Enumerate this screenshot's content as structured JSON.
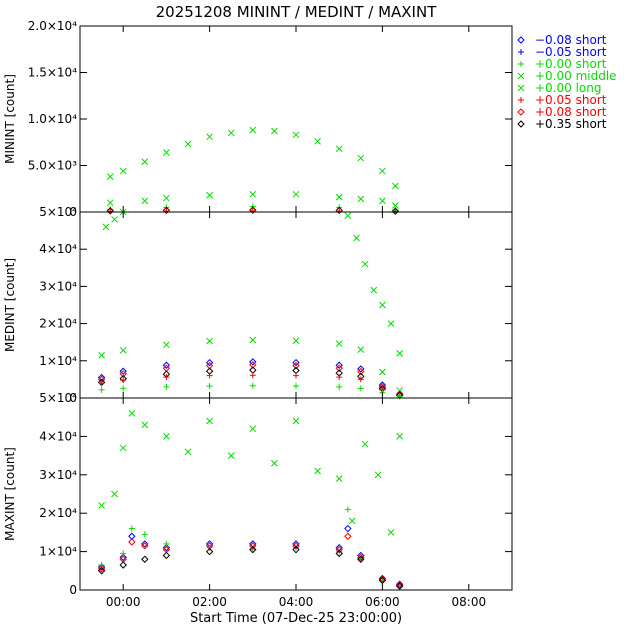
{
  "chart_data": {
    "type": "scatter",
    "title": "20251208 MININT / MEDINT / MAXINT",
    "xlabel": "Start Time (07-Dec-25 23:00:00)",
    "x_unit": "hours after 00:00 08-Dec-25",
    "xlim": [
      -1.0,
      9.0
    ],
    "x_ticks": [
      0,
      2,
      4,
      6,
      8
    ],
    "x_tick_labels": [
      "00:00",
      "02:00",
      "04:00",
      "06:00",
      "08:00"
    ],
    "legend_position": "right",
    "legend": [
      {
        "label": "−0.08 short",
        "color": "#0000ff",
        "marker": "diamond"
      },
      {
        "label": "−0.05 short",
        "color": "#0000ff",
        "marker": "plus"
      },
      {
        "label": "+0.00 short",
        "color": "#00dd00",
        "marker": "plus"
      },
      {
        "label": "+0.00 middle",
        "color": "#00dd00",
        "marker": "cross"
      },
      {
        "label": "+0.00 long",
        "color": "#00dd00",
        "marker": "cross"
      },
      {
        "label": "+0.05 short",
        "color": "#ff0000",
        "marker": "plus"
      },
      {
        "label": "+0.08 short",
        "color": "#ff0000",
        "marker": "diamond"
      },
      {
        "label": "+0.35 short",
        "color": "#000000",
        "marker": "diamond"
      }
    ],
    "panels": [
      {
        "ylabel": "MININT [count]",
        "ylim": [
          0,
          20000
        ],
        "y_ticks": [
          0,
          5000,
          10000,
          15000,
          20000
        ],
        "y_tick_labels": [
          "0",
          "5.0×10³",
          "1.0×10⁴",
          "1.5×10⁴",
          "2.0×10⁴"
        ],
        "series": [
          {
            "name": "+0.00 middle",
            "color": "#00dd00",
            "marker": "cross",
            "x": [
              -0.3,
              0.0,
              0.5,
              1.0,
              1.5,
              2.0,
              2.5,
              3.0,
              3.5,
              4.0,
              4.5,
              5.0,
              5.5,
              6.0,
              6.3
            ],
            "y": [
              3800,
              4400,
              5400,
              6400,
              7300,
              8100,
              8500,
              8800,
              8700,
              8300,
              7600,
              6800,
              5800,
              4400,
              2800
            ]
          },
          {
            "name": "+0.00 long",
            "color": "#00dd00",
            "marker": "cross",
            "x": [
              -0.3,
              0.5,
              1.0,
              2.0,
              3.0,
              4.0,
              5.0,
              5.5,
              6.0,
              6.3
            ],
            "y": [
              1000,
              1200,
              1500,
              1800,
              1900,
              1900,
              1600,
              1400,
              1200,
              700
            ]
          },
          {
            "name": "+0.00 short",
            "color": "#00dd00",
            "marker": "plus",
            "x": [
              -0.3,
              1.0,
              3.0,
              5.0,
              6.3
            ],
            "y": [
              300,
              500,
              600,
              500,
              200
            ]
          },
          {
            "name": "+0.35 short",
            "color": "#000000",
            "marker": "diamond",
            "x": [
              -0.3,
              1.0,
              3.0,
              5.0,
              6.3
            ],
            "y": [
              120,
              180,
              200,
              180,
              80
            ]
          },
          {
            "name": "+0.05 short",
            "color": "#ff0000",
            "marker": "plus",
            "x": [
              -0.3,
              1.0,
              3.0,
              5.0,
              6.3
            ],
            "y": [
              80,
              110,
              130,
              110,
              50
            ]
          }
        ]
      },
      {
        "ylabel": "MEDINT [count]",
        "ylim": [
          0,
          50000
        ],
        "y_ticks": [
          0,
          10000,
          20000,
          30000,
          40000,
          50000
        ],
        "y_tick_labels": [
          "0",
          "1×10⁴",
          "2×10⁴",
          "3×10⁴",
          "4×10⁴",
          "5×10⁴"
        ],
        "series": [
          {
            "name": "+0.00 middle",
            "color": "#00dd00",
            "marker": "cross",
            "x": [
              -0.4,
              -0.2,
              0.0,
              5.2,
              5.4,
              5.6,
              5.8,
              6.0,
              6.2,
              6.4
            ],
            "y": [
              46000,
              48000,
              50000,
              49000,
              43000,
              36000,
              29000,
              25000,
              20000,
              12000
            ]
          },
          {
            "name": "+0.00 long",
            "color": "#00dd00",
            "marker": "cross",
            "x": [
              -0.5,
              0.0,
              1.0,
              2.0,
              3.0,
              4.0,
              5.0,
              5.5,
              6.0,
              6.4
            ],
            "y": [
              11500,
              12800,
              14300,
              15300,
              15600,
              15400,
              14600,
              13000,
              7000,
              2000
            ]
          },
          {
            "name": "−0.08 short",
            "color": "#0000ff",
            "marker": "diamond",
            "x": [
              -0.5,
              0.0,
              1.0,
              2.0,
              3.0,
              4.0,
              5.0,
              5.5,
              6.0,
              6.4
            ],
            "y": [
              5500,
              7200,
              8800,
              9500,
              9700,
              9500,
              8800,
              7800,
              3500,
              1000
            ]
          },
          {
            "name": "+0.08 short",
            "color": "#ff0000",
            "marker": "diamond",
            "x": [
              -0.5,
              0.0,
              1.0,
              2.0,
              3.0,
              4.0,
              5.0,
              5.5,
              6.0,
              6.4
            ],
            "y": [
              5000,
              6500,
              8000,
              8700,
              8900,
              8700,
              8000,
              7100,
              3000,
              900
            ]
          },
          {
            "name": "+0.35 short",
            "color": "#000000",
            "marker": "diamond",
            "x": [
              -0.5,
              0.0,
              1.0,
              2.0,
              3.0,
              4.0,
              5.0,
              5.5,
              6.0,
              6.4
            ],
            "y": [
              4200,
              5200,
              6400,
              7200,
              7500,
              7400,
              6700,
              5800,
              2500,
              700
            ]
          },
          {
            "name": "+0.05 short",
            "color": "#ff0000",
            "marker": "plus",
            "x": [
              -0.5,
              0.0,
              1.0,
              2.0,
              3.0,
              4.0,
              5.0,
              5.5,
              6.0,
              6.4
            ],
            "y": [
              4000,
              4800,
              5600,
              6000,
              6100,
              6000,
              5600,
              5000,
              2200,
              600
            ]
          },
          {
            "name": "+0.00 short",
            "color": "#00dd00",
            "marker": "plus",
            "x": [
              -0.5,
              0.0,
              1.0,
              2.0,
              3.0,
              4.0,
              5.0,
              5.5,
              6.0,
              6.4
            ],
            "y": [
              2200,
              2600,
              3000,
              3200,
              3300,
              3200,
              3000,
              2600,
              1400,
              400
            ]
          }
        ]
      },
      {
        "ylabel": "MAXINT [count]",
        "ylim": [
          0,
          50000
        ],
        "y_ticks": [
          0,
          10000,
          20000,
          30000,
          40000,
          50000
        ],
        "y_tick_labels": [
          "0",
          "1×10⁴",
          "2×10⁴",
          "3×10⁴",
          "4×10⁴",
          "5×10⁴"
        ],
        "series": [
          {
            "name": "+0.00 middle",
            "color": "#00dd00",
            "marker": "cross",
            "x": [
              -0.5,
              -0.2,
              0.0,
              0.2,
              0.5,
              1.0,
              1.5,
              2.0,
              2.5,
              3.0,
              3.5,
              4.0,
              4.5,
              5.0,
              5.3,
              5.6,
              5.9,
              6.2,
              6.4
            ],
            "y": [
              22000,
              25000,
              37000,
              46000,
              43000,
              40000,
              36000,
              44000,
              35000,
              42000,
              33000,
              44000,
              31000,
              29000,
              18000,
              38000,
              30000,
              15000,
              40000
            ]
          },
          {
            "name": "−0.08 short",
            "color": "#0000ff",
            "marker": "diamond",
            "x": [
              -0.5,
              0.0,
              0.2,
              0.5,
              1.0,
              2.0,
              3.0,
              4.0,
              5.0,
              5.2,
              5.5,
              6.0,
              6.4
            ],
            "y": [
              6000,
              8500,
              14000,
              12000,
              11000,
              12000,
              12000,
              12000,
              11000,
              16000,
              9000,
              3000,
              1500
            ]
          },
          {
            "name": "+0.00 short",
            "color": "#00dd00",
            "marker": "plus",
            "x": [
              -0.5,
              0.0,
              0.2,
              0.5,
              1.0,
              2.0,
              3.0,
              4.0,
              5.0,
              5.2,
              5.5,
              6.0,
              6.4
            ],
            "y": [
              6500,
              9500,
              16000,
              14500,
              12000,
              11000,
              10500,
              11000,
              10000,
              21000,
              8000,
              2500,
              1200
            ]
          },
          {
            "name": "+0.08 short",
            "color": "#ff0000",
            "marker": "diamond",
            "x": [
              -0.5,
              0.0,
              0.2,
              0.5,
              1.0,
              2.0,
              3.0,
              4.0,
              5.0,
              5.2,
              5.5,
              6.0,
              6.4
            ],
            "y": [
              5500,
              8000,
              12500,
              11500,
              10500,
              11500,
              11500,
              11500,
              10500,
              14000,
              8500,
              2800,
              1300
            ]
          },
          {
            "name": "+0.35 short",
            "color": "#000000",
            "marker": "diamond",
            "x": [
              -0.5,
              0.0,
              0.5,
              1.0,
              2.0,
              3.0,
              4.0,
              5.0,
              5.5,
              6.0,
              6.4
            ],
            "y": [
              5000,
              6500,
              8000,
              9000,
              10000,
              10500,
              10500,
              9500,
              8000,
              2500,
              1000
            ]
          }
        ]
      }
    ]
  }
}
